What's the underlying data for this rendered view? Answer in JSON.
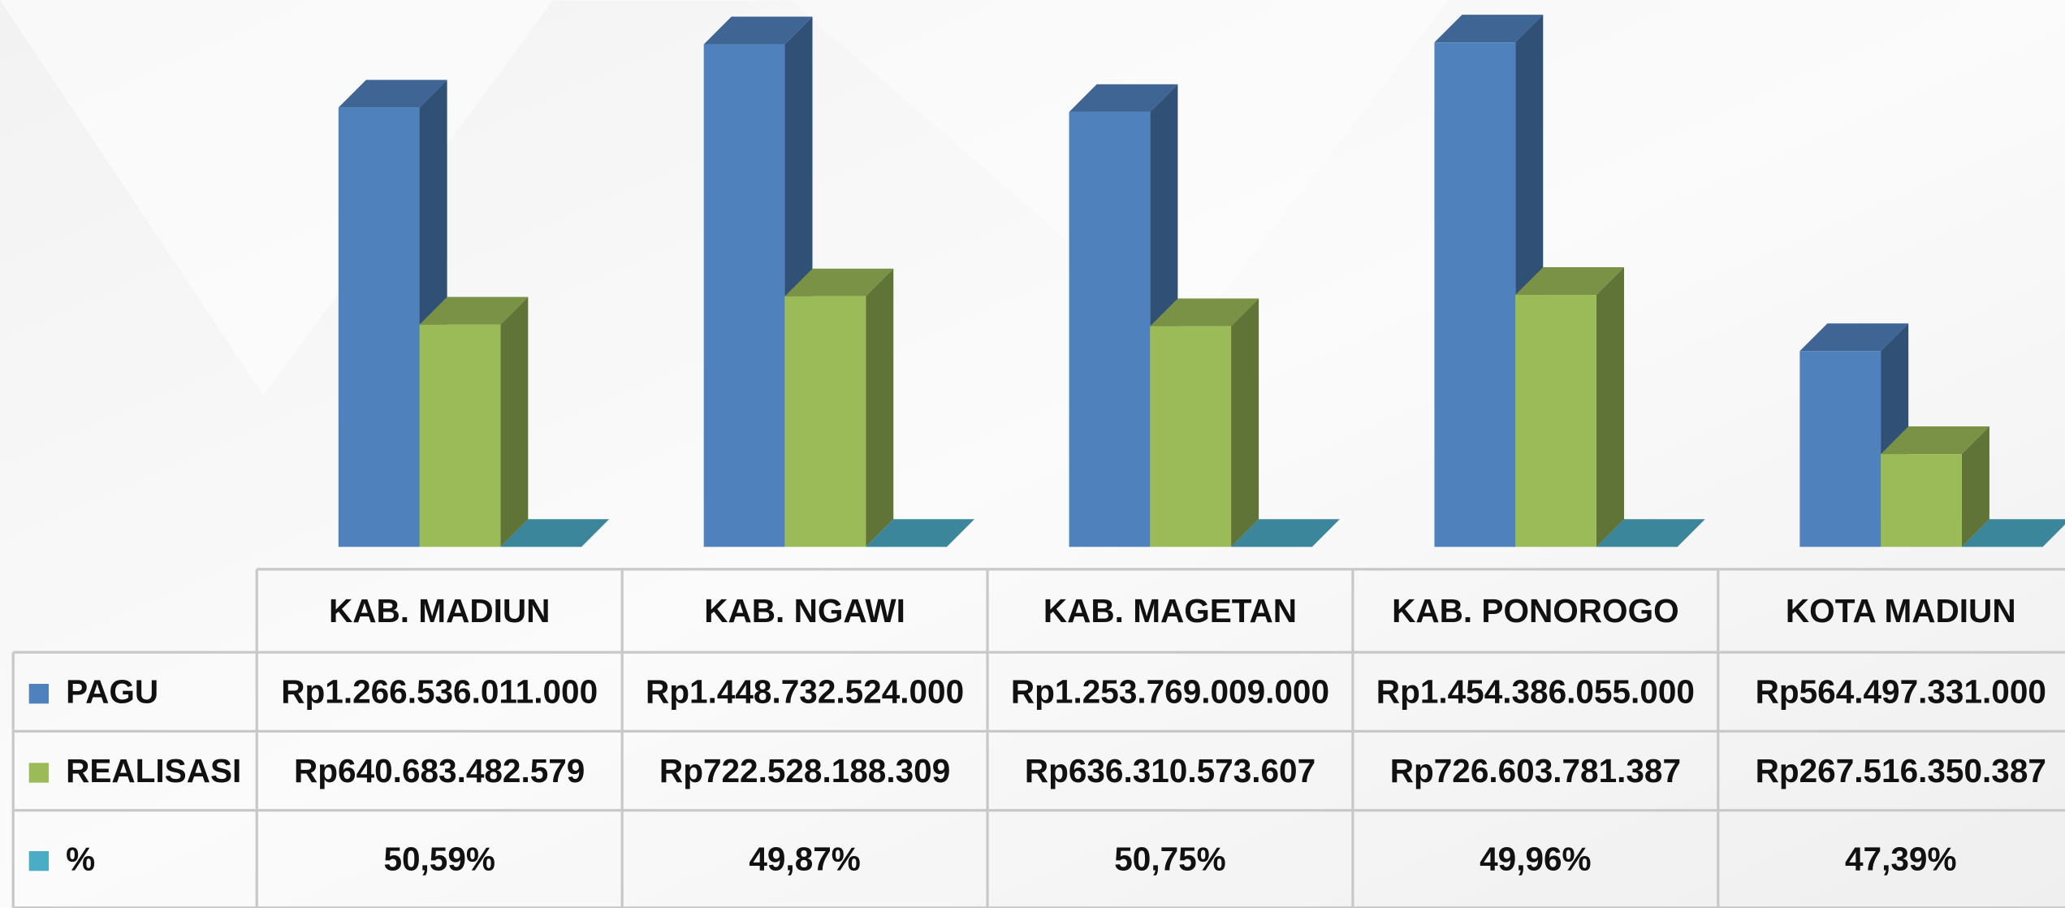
{
  "chart_data": {
    "type": "bar3d",
    "categories": [
      "KAB. MADIUN",
      "KAB. NGAWI",
      "KAB. MAGETAN",
      "KAB. PONOROGO",
      "KOTA MADIUN"
    ],
    "series": [
      {
        "name": "PAGU",
        "color": "#4f81bd",
        "values": [
          1266536011000,
          1448732524000,
          1253769009000,
          1454386055000,
          564497331000
        ],
        "value_labels": [
          "Rp1.266.536.011.000",
          "Rp1.448.732.524.000",
          "Rp1.253.769.009.000",
          "Rp1.454.386.055.000",
          "Rp564.497.331.000"
        ]
      },
      {
        "name": "REALISASI",
        "color": "#9bbb59",
        "values": [
          640683482579,
          722528188309,
          636310573607,
          726603781387,
          267516350387
        ],
        "value_labels": [
          "Rp640.683.482.579",
          "Rp722.528.188.309",
          "Rp636.310.573.607",
          "Rp726.603.781.387",
          "Rp267.516.350.387"
        ]
      },
      {
        "name": "%",
        "color": "#4bacc6",
        "values": [
          50.59,
          49.87,
          50.75,
          49.96,
          47.39
        ],
        "value_labels": [
          "50,59%",
          "49,87%",
          "50,75%",
          "49,96%",
          "47,39%"
        ]
      }
    ]
  }
}
